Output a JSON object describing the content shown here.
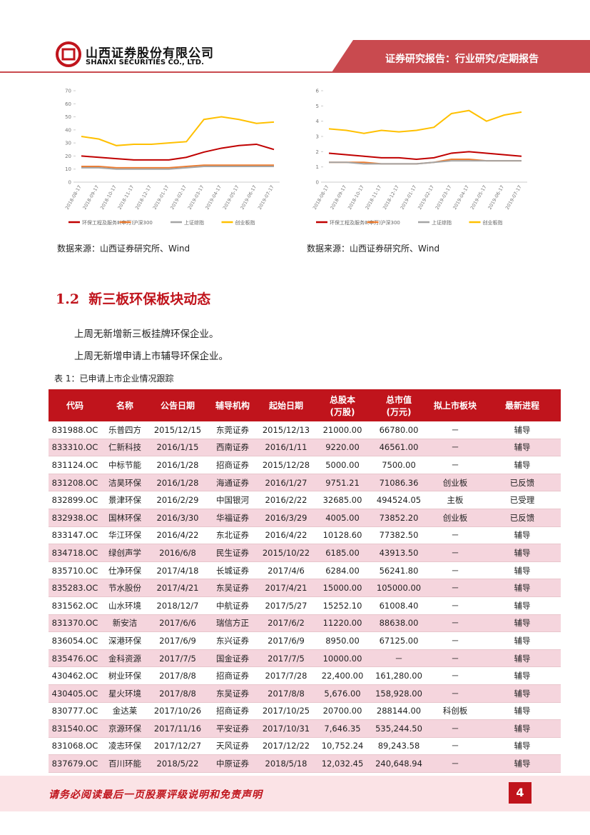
{
  "header": {
    "company_cn": "山西证券股份有限公司",
    "company_en": "SHANXI SECURITIES CO., LTD.",
    "report_type": "证券研究报告：行业研究/定期报告"
  },
  "chart_data": [
    {
      "type": "line",
      "source": "数据来源：山西证券研究所、Wind",
      "x": [
        "2018-08-17",
        "2018-09-17",
        "2018-10-17",
        "2018-11-17",
        "2018-12-17",
        "2019-01-17",
        "2019-02-17",
        "2019-03-17",
        "2019-04-17",
        "2019-05-17",
        "2019-06-17",
        "2019-07-17"
      ],
      "series": [
        {
          "name": "环保工程及服务Ⅱ(申万)",
          "color": "#c00000",
          "values": [
            20,
            19,
            18,
            17,
            17,
            17,
            19,
            23,
            26,
            28,
            29,
            25
          ]
        },
        {
          "name": "沪深300",
          "color": "#ed7d31",
          "values": [
            12,
            12,
            11,
            11,
            11,
            11,
            12,
            13,
            13,
            13,
            13,
            13
          ]
        },
        {
          "name": "上证综指",
          "color": "#a5a5a5",
          "values": [
            11,
            11,
            10,
            10,
            10,
            10,
            11,
            12,
            12,
            12,
            12,
            12
          ]
        },
        {
          "name": "创业板指",
          "color": "#ffc000",
          "values": [
            35,
            33,
            28,
            29,
            29,
            30,
            31,
            48,
            50,
            48,
            45,
            46
          ]
        }
      ],
      "ylim": [
        0,
        70
      ],
      "yticks": [
        0,
        10,
        20,
        30,
        40,
        50,
        60,
        70
      ],
      "legend": "bottom"
    },
    {
      "type": "line",
      "source": "数据来源：山西证券研究所、Wind",
      "x": [
        "2018-08-17",
        "2018-09-17",
        "2018-10-17",
        "2018-11-17",
        "2018-12-17",
        "2019-01-17",
        "2019-02-17",
        "2019-03-17",
        "2019-04-17",
        "2019-05-17",
        "2019-06-17",
        "2019-07-17"
      ],
      "series": [
        {
          "name": "环保工程及服务Ⅱ(申万)",
          "color": "#c00000",
          "values": [
            1.9,
            1.8,
            1.7,
            1.6,
            1.6,
            1.5,
            1.6,
            1.9,
            2.0,
            1.9,
            1.8,
            1.7
          ]
        },
        {
          "name": "沪深300",
          "color": "#ed7d31",
          "values": [
            1.3,
            1.3,
            1.3,
            1.2,
            1.2,
            1.2,
            1.3,
            1.5,
            1.5,
            1.4,
            1.4,
            1.4
          ]
        },
        {
          "name": "上证综指",
          "color": "#a5a5a5",
          "values": [
            1.3,
            1.3,
            1.2,
            1.2,
            1.2,
            1.2,
            1.3,
            1.4,
            1.4,
            1.4,
            1.4,
            1.4
          ]
        },
        {
          "name": "创业板指",
          "color": "#ffc000",
          "values": [
            3.5,
            3.4,
            3.2,
            3.4,
            3.3,
            3.4,
            3.6,
            4.5,
            4.7,
            4.0,
            4.4,
            4.6
          ]
        }
      ],
      "ylim": [
        0,
        6
      ],
      "yticks": [
        0,
        1,
        2,
        3,
        4,
        5,
        6
      ],
      "legend": "bottom"
    }
  ],
  "section": {
    "number": "1.2",
    "title": "新三板环保板块动态"
  },
  "paragraphs": [
    "上周无新增新三板挂牌环保企业。",
    "上周无新增申请上市辅导环保企业。"
  ],
  "table": {
    "caption": "表 1：已申请上市企业情况跟踪",
    "columns": [
      "代码",
      "名称",
      "公告日期",
      "辅导机构",
      "起始日期",
      "总股本\n(万股)",
      "总市值\n(万元)",
      "拟上市板块",
      "最新进程"
    ],
    "rows": [
      [
        "831988.OC",
        "乐普四方",
        "2015/12/15",
        "东莞证券",
        "2015/12/13",
        "21000.00",
        "66780.00",
        "－",
        "辅导"
      ],
      [
        "833310.OC",
        "仁新科技",
        "2016/1/15",
        "西南证券",
        "2016/1/11",
        "9220.00",
        "46561.00",
        "－",
        "辅导"
      ],
      [
        "831124.OC",
        "中标节能",
        "2016/1/28",
        "招商证券",
        "2015/12/28",
        "5000.00",
        "7500.00",
        "－",
        "辅导"
      ],
      [
        "831208.OC",
        "洁昊环保",
        "2016/1/28",
        "海通证券",
        "2016/1/27",
        "9751.21",
        "71086.36",
        "创业板",
        "已反馈"
      ],
      [
        "832899.OC",
        "景津环保",
        "2016/2/29",
        "中国银河",
        "2016/2/22",
        "32685.00",
        "494524.05",
        "主板",
        "已受理"
      ],
      [
        "832938.OC",
        "国林环保",
        "2016/3/30",
        "华福证券",
        "2016/3/29",
        "4005.00",
        "73852.20",
        "创业板",
        "已反馈"
      ],
      [
        "833147.OC",
        "华江环保",
        "2016/4/22",
        "东北证券",
        "2016/4/22",
        "10128.60",
        "77382.50",
        "－",
        "辅导"
      ],
      [
        "834718.OC",
        "绿创声学",
        "2016/6/8",
        "民生证券",
        "2015/10/22",
        "6185.00",
        "43913.50",
        "－",
        "辅导"
      ],
      [
        "835710.OC",
        "仕净环保",
        "2017/4/18",
        "长城证券",
        "2017/4/6",
        "6284.00",
        "56241.80",
        "－",
        "辅导"
      ],
      [
        "835283.OC",
        "节水股份",
        "2017/4/21",
        "东吴证券",
        "2017/4/21",
        "15000.00",
        "105000.00",
        "－",
        "辅导"
      ],
      [
        "831562.OC",
        "山水环境",
        "2018/12/7",
        "中航证券",
        "2017/5/27",
        "15252.10",
        "61008.40",
        "－",
        "辅导"
      ],
      [
        "831370.OC",
        "新安洁",
        "2017/6/6",
        "瑞信方正",
        "2017/6/2",
        "11220.00",
        "88638.00",
        "－",
        "辅导"
      ],
      [
        "836054.OC",
        "深港环保",
        "2017/6/9",
        "东兴证券",
        "2017/6/9",
        "8950.00",
        "67125.00",
        "－",
        "辅导"
      ],
      [
        "835476.OC",
        "金科资源",
        "2017/7/5",
        "国金证券",
        "2017/7/5",
        "10000.00",
        "－",
        "－",
        "辅导"
      ],
      [
        "430462.OC",
        "树业环保",
        "2017/8/8",
        "招商证券",
        "2017/7/28",
        "22,400.00",
        "161,280.00",
        "－",
        "辅导"
      ],
      [
        "430405.OC",
        "星火环境",
        "2017/8/8",
        "东吴证券",
        "2017/8/8",
        "5,676.00",
        "158,928.00",
        "－",
        "辅导"
      ],
      [
        "830777.OC",
        "金达莱",
        "2017/10/26",
        "招商证券",
        "2017/10/25",
        "20700.00",
        "288144.00",
        "科创板",
        "辅导"
      ],
      [
        "831540.OC",
        "京源环保",
        "2017/11/16",
        "平安证券",
        "2017/10/31",
        "7,646.35",
        "535,244.50",
        "－",
        "辅导"
      ],
      [
        "831068.OC",
        "凌志环保",
        "2017/12/27",
        "天风证券",
        "2017/12/22",
        "10,752.24",
        "89,243.58",
        "－",
        "辅导"
      ],
      [
        "837679.OC",
        "百川环能",
        "2018/5/22",
        "中原证券",
        "2018/5/18",
        "12,032.45",
        "240,648.94",
        "－",
        "辅导"
      ]
    ]
  },
  "footer": {
    "disclaimer": "请务必阅读最后一页股票评级说明和免责声明",
    "page": 4
  }
}
